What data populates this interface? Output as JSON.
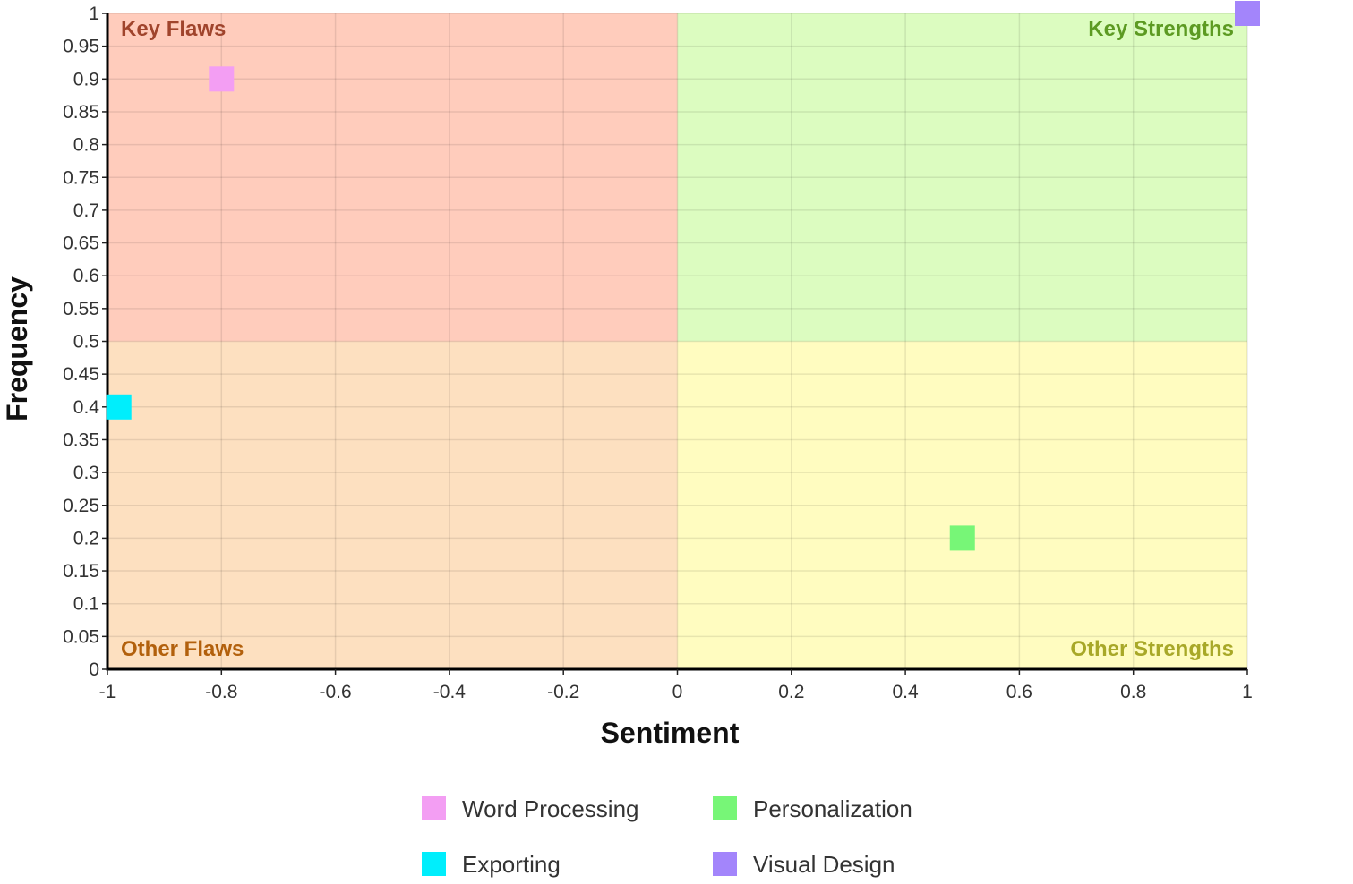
{
  "chart_data": {
    "type": "scatter",
    "xlabel": "Sentiment",
    "ylabel": "Frequency",
    "xlim": [
      -1,
      1
    ],
    "ylim": [
      0,
      1
    ],
    "x_ticks": [
      -1,
      -0.8,
      -0.6,
      -0.4,
      -0.2,
      0,
      0.2,
      0.4,
      0.6,
      0.8,
      1
    ],
    "y_ticks": [
      0,
      0.05,
      0.1,
      0.15,
      0.2,
      0.25,
      0.3,
      0.35,
      0.4,
      0.45,
      0.5,
      0.55,
      0.6,
      0.65,
      0.7,
      0.75,
      0.8,
      0.85,
      0.9,
      0.95,
      1
    ],
    "grid": true,
    "legend_position": "bottom",
    "quadrants": [
      {
        "key": "top-left",
        "label": "Key Flaws",
        "fill": "#ffccbc",
        "label_color": "#a0442c"
      },
      {
        "key": "top-right",
        "label": "Key Strengths",
        "fill": "#dcfcc0",
        "label_color": "#5c9a22"
      },
      {
        "key": "bottom-left",
        "label": "Other Flaws",
        "fill": "#fde0c0",
        "label_color": "#b2600c"
      },
      {
        "key": "bottom-right",
        "label": "Other Strengths",
        "fill": "#fffcc0",
        "label_color": "#a8a828"
      }
    ],
    "series": [
      {
        "name": "Word Processing",
        "color": "#f39ef3",
        "points": [
          {
            "x": -0.8,
            "y": 0.9
          }
        ]
      },
      {
        "name": "Exporting",
        "color": "#00eefc",
        "points": [
          {
            "x": -0.98,
            "y": 0.4
          }
        ]
      },
      {
        "name": "Personalization",
        "color": "#77f677",
        "points": [
          {
            "x": 0.5,
            "y": 0.2
          }
        ]
      },
      {
        "name": "Visual Design",
        "color": "#a385fb",
        "points": [
          {
            "x": 1,
            "y": 1
          }
        ]
      }
    ]
  }
}
